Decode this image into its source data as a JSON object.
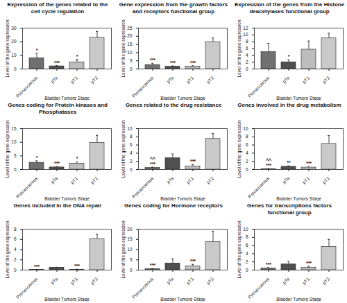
{
  "chart_data": [
    {
      "type": "bar",
      "title": "Expression of the genes related to the cell cycle regulation",
      "x_label": "Bladder Tumors Stage",
      "y_label": "Level of the gene expression",
      "categories": [
        "Precancerous",
        "pTa",
        "pT1",
        "pT2"
      ],
      "values": [
        8,
        2,
        5,
        23
      ],
      "errors": [
        3.5,
        0.5,
        2,
        4.5
      ],
      "annotations": [
        [
          "*"
        ],
        [
          "***"
        ],
        [
          "*"
        ],
        []
      ],
      "colors": [
        "#707070",
        "#505050",
        "#bdbdbd",
        "#c9c9c9"
      ],
      "ylim": [
        0,
        30
      ],
      "yticks": [
        0,
        10,
        20,
        30
      ]
    },
    {
      "type": "bar",
      "title": "Gene expression from the growth factors and receptors functional group",
      "x_label": "Bladder Tumors Stage",
      "y_label": "Level of the gene expression",
      "categories": [
        "Precancerous",
        "pTa",
        "pT1",
        "pT2"
      ],
      "values": [
        2.5,
        1.5,
        1.5,
        16.5
      ],
      "errors": [
        1,
        0.4,
        0.5,
        2.5
      ],
      "annotations": [
        [
          "***"
        ],
        [
          "***"
        ],
        [
          "***"
        ],
        []
      ],
      "colors": [
        "#707070",
        "#505050",
        "#bdbdbd",
        "#c9c9c9"
      ],
      "ylim": [
        0,
        25
      ],
      "yticks": [
        0,
        5,
        10,
        15,
        20,
        25
      ]
    },
    {
      "type": "bar",
      "title": "Expression of the genes from the Histone deacetylases functional group",
      "x_label": "Bladder Tumors Stage",
      "y_label": "Level of the gene expression",
      "categories": [
        "Precancerous",
        "pTa",
        "pT1",
        "pT2"
      ],
      "values": [
        5,
        2,
        5.7,
        9
      ],
      "errors": [
        2.5,
        0.7,
        2.5,
        1.5
      ],
      "annotations": [
        [],
        [
          "*"
        ],
        [],
        []
      ],
      "colors": [
        "#707070",
        "#505050",
        "#bdbdbd",
        "#c9c9c9"
      ],
      "ylim": [
        0,
        12
      ],
      "yticks": [
        0,
        2,
        4,
        6,
        8,
        10,
        12
      ]
    },
    {
      "type": "bar",
      "title": "Genes coding for Protein kinases and Phosphatases",
      "x_label": "Bladder Tumors Stage",
      "y_label": "Level of the gene expression",
      "categories": [
        "Precancerous",
        "pTa",
        "pT1",
        "pT2"
      ],
      "values": [
        2.5,
        0.8,
        2.2,
        9.8
      ],
      "errors": [
        0.7,
        0.3,
        0.6,
        2.7
      ],
      "annotations": [
        [
          "*"
        ],
        [
          "***"
        ],
        [
          "*"
        ],
        []
      ],
      "colors": [
        "#707070",
        "#505050",
        "#bdbdbd",
        "#c9c9c9"
      ],
      "ylim": [
        0,
        15
      ],
      "yticks": [
        0,
        5,
        10,
        15
      ]
    },
    {
      "type": "bar",
      "title": "Genes related to the drug resistance",
      "x_label": "Bladder Tumors Stage",
      "y_label": "Level of the gene expression",
      "categories": [
        "Precancerous",
        "pTa",
        "pT1",
        "pT2"
      ],
      "values": [
        0.4,
        2.8,
        0.8,
        7.5
      ],
      "errors": [
        0.2,
        1,
        0.4,
        1.3
      ],
      "annotations": [
        [
          "^^",
          "***"
        ],
        [],
        [
          "***"
        ],
        []
      ],
      "colors": [
        "#707070",
        "#505050",
        "#bdbdbd",
        "#c9c9c9"
      ],
      "ylim": [
        0,
        10
      ],
      "yticks": [
        0,
        2,
        4,
        6,
        8,
        10
      ]
    },
    {
      "type": "bar",
      "title": "Genes involved in the drug metabolism",
      "x_label": "Bladder Tumors Stage",
      "y_label": "Level of the gene expression",
      "categories": [
        "Precancerous",
        "pTa",
        "pT1",
        "pT2"
      ],
      "values": [
        0.1,
        0.7,
        0.5,
        6.3
      ],
      "errors": [
        0.1,
        0.2,
        0.2,
        2
      ],
      "annotations": [
        [
          "^^",
          "***"
        ],
        [
          "**"
        ],
        [
          "***"
        ],
        []
      ],
      "colors": [
        "#707070",
        "#505050",
        "#bdbdbd",
        "#c9c9c9"
      ],
      "ylim": [
        0,
        10
      ],
      "yticks": [
        0,
        2,
        4,
        6,
        8,
        10
      ]
    },
    {
      "type": "bar",
      "title": "Genes included in the DNA repair",
      "x_label": "Bladder Tumors Stage",
      "y_label": "Level of the gene expression",
      "categories": [
        "Precancerous",
        "pTa",
        "pT1",
        "pT2"
      ],
      "values": [
        0.05,
        0.5,
        0.1,
        6.1
      ],
      "errors": [
        0.03,
        0.05,
        0.05,
        0.9
      ],
      "annotations": [
        [
          "***"
        ],
        [],
        [
          "***"
        ],
        []
      ],
      "colors": [
        "#707070",
        "#505050",
        "#bdbdbd",
        "#c9c9c9"
      ],
      "ylim": [
        0,
        8
      ],
      "yticks": [
        0,
        2,
        4,
        6,
        8
      ]
    },
    {
      "type": "bar",
      "title": "Genes coding for Hormone receptors",
      "x_label": "Bladder Tumors Stage",
      "y_label": "Level of the gene expression",
      "categories": [
        "Precancerous",
        "pTa",
        "pT1",
        "pT2"
      ],
      "values": [
        0.5,
        3.3,
        1.8,
        13.7
      ],
      "errors": [
        0.2,
        2.2,
        1,
        5.3
      ],
      "annotations": [
        [
          "***"
        ],
        [],
        [
          "***"
        ],
        []
      ],
      "colors": [
        "#707070",
        "#505050",
        "#bdbdbd",
        "#c9c9c9"
      ],
      "ylim": [
        0,
        20
      ],
      "yticks": [
        0,
        5,
        10,
        15,
        20
      ]
    },
    {
      "type": "bar",
      "title": "Genes for transcriptions factors functional group",
      "x_label": "Bladder Tumors Stage",
      "y_label": "Level of the gene expression",
      "categories": [
        "Precancerous",
        "pTa",
        "pT1",
        "pT2"
      ],
      "values": [
        0.4,
        1.4,
        0.6,
        5.7
      ],
      "errors": [
        0.2,
        0.7,
        0.3,
        1.8
      ],
      "annotations": [
        [
          "***"
        ],
        [],
        [
          "***"
        ],
        []
      ],
      "colors": [
        "#707070",
        "#505050",
        "#bdbdbd",
        "#c9c9c9"
      ],
      "ylim": [
        0,
        10
      ],
      "yticks": [
        0,
        2,
        4,
        6,
        8,
        10
      ]
    }
  ]
}
